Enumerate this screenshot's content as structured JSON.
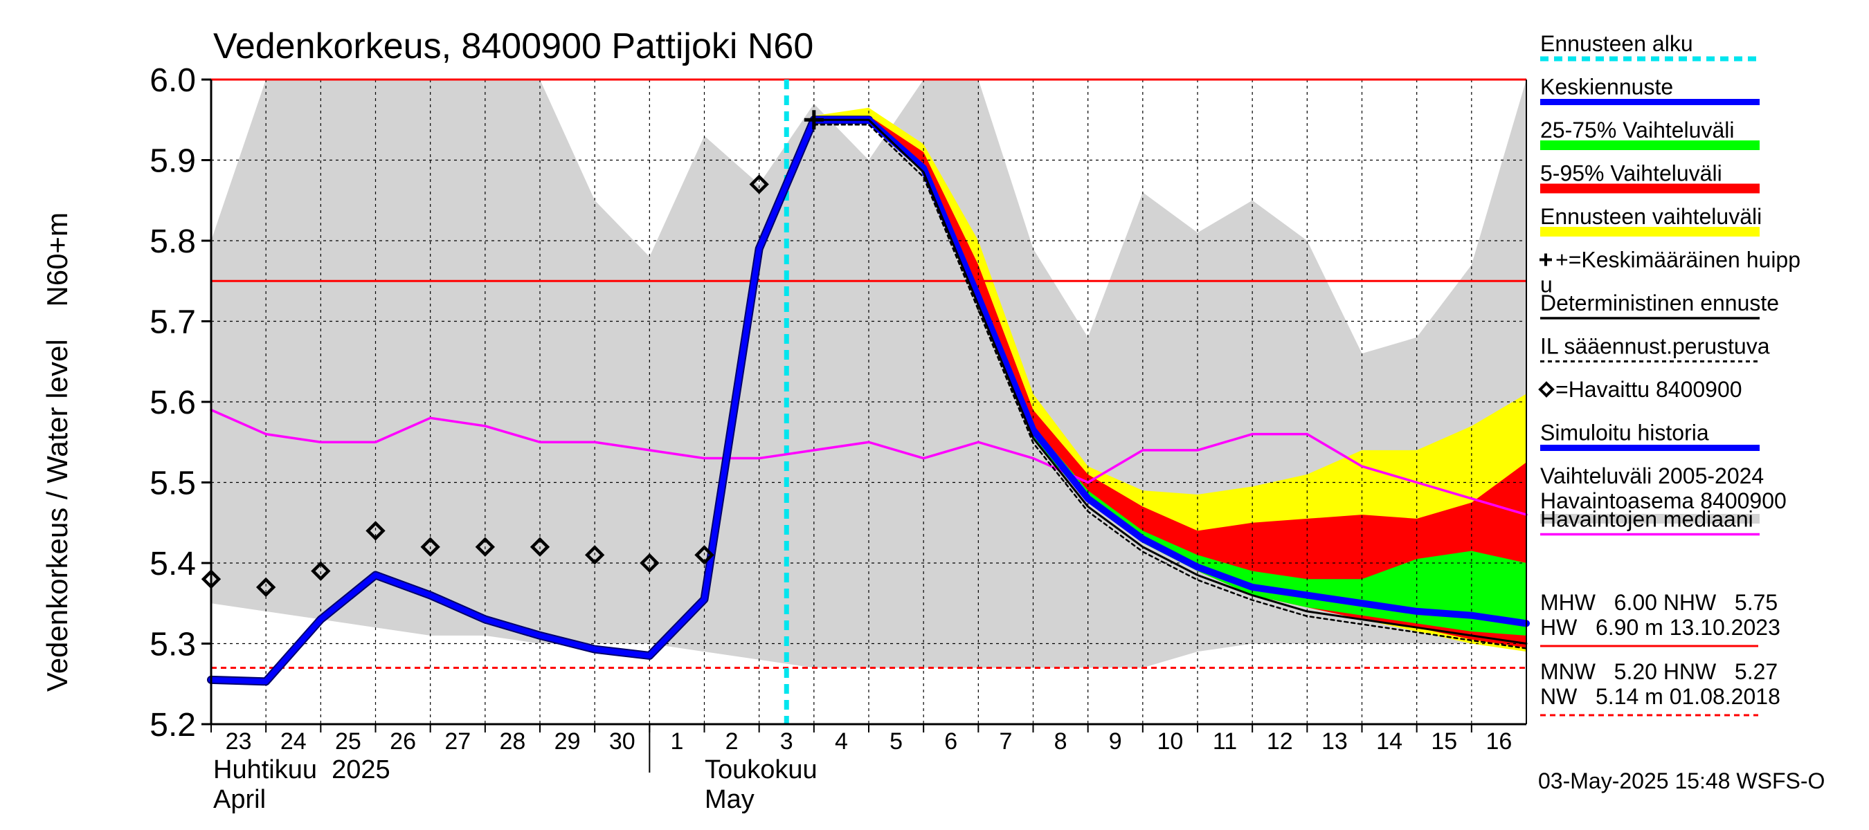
{
  "chart_data": {
    "type": "line",
    "title": "Vedenkorkeus, 8400900 Pattijoki N60",
    "ylabel": "Vedenkorkeus / Water level    N60+m",
    "ylim": [
      5.2,
      6.0
    ],
    "yticks": [
      "5.2",
      "5.3",
      "5.4",
      "5.5",
      "5.6",
      "5.7",
      "5.8",
      "5.9",
      "6.0"
    ],
    "x_range": [
      "2025-04-23",
      "2025-05-17"
    ],
    "x_tick_labels": [
      "23",
      "24",
      "25",
      "26",
      "27",
      "28",
      "29",
      "30",
      "1",
      "2",
      "3",
      "4",
      "5",
      "6",
      "7",
      "8",
      "9",
      "10",
      "11",
      "12",
      "13",
      "14",
      "15",
      "16"
    ],
    "month_labels": [
      {
        "fi": "Huhtikuu  2025",
        "en": "April"
      },
      {
        "fi": "Toukokuu",
        "en": "May"
      }
    ],
    "grid": true,
    "legend_placement": "right",
    "timestamp": "03-May-2025 15:48 WSFS-O",
    "forecast_start": "2025-05-03 12:00",
    "reference_lines": [
      {
        "name": "MHW",
        "value": 6.0,
        "style": "solid",
        "color": "#ff0000"
      },
      {
        "name": "NHW",
        "value": 5.75,
        "style": "solid",
        "color": "#ff0000"
      },
      {
        "name": "HNW",
        "value": 5.27,
        "style": "dashed",
        "color": "#ff0000"
      }
    ],
    "stats": {
      "line1": "MHW   6.00 NHW   5.75",
      "line2": "HW   6.90 m 13.10.2023",
      "line3": "MNW   5.20 HNW   5.27",
      "line4": "NW   5.14 m 01.08.2018"
    },
    "legend": [
      {
        "label": "Ennusteen alku",
        "color": "#00e5ee",
        "style": "dashed"
      },
      {
        "label": "Keskiennuste",
        "color": "#0000ff",
        "style": "thick"
      },
      {
        "label": "25-75% Vaihteluväli",
        "color": "#00ff00",
        "style": "band"
      },
      {
        "label": "5-95% Vaihteluväli",
        "color": "#ff0000",
        "style": "band"
      },
      {
        "label": "Ennusteen vaihteluväli",
        "color": "#ffff00",
        "style": "band"
      },
      {
        "label": "+=Keskimääräinen huipp",
        "label2": "u",
        "color": "#000000",
        "style": "marker"
      },
      {
        "label": "Deterministinen ennuste",
        "color": "#000000",
        "style": "line"
      },
      {
        "label": "IL sääennust.perustuva",
        "color": "#000000",
        "style": "dashed"
      },
      {
        "label": "=Havaittu 8400900",
        "color": "#000000",
        "style": "diamond"
      },
      {
        "label": "Simuloitu historia",
        "color": "#0000ff",
        "style": "thick"
      },
      {
        "label": "Vaihteluväli 2005-2024",
        "label2": " Havaintoasema 8400900",
        "color": "#d3d3d3",
        "style": "band"
      },
      {
        "label": "Havaintojen mediaani",
        "color": "#ff00ff",
        "style": "line"
      }
    ],
    "series": [
      {
        "name": "Vaihteluväli 2005-2024",
        "color": "#d3d3d3",
        "upper": [
          [
            0,
            5.8
          ],
          [
            1,
            6.0
          ],
          [
            2,
            6.0
          ],
          [
            3,
            6.0
          ],
          [
            4,
            6.0
          ],
          [
            5,
            6.0
          ],
          [
            6,
            6.0
          ],
          [
            7,
            5.85
          ],
          [
            8,
            5.78
          ],
          [
            9,
            5.93
          ],
          [
            10,
            5.87
          ],
          [
            11,
            5.97
          ],
          [
            12,
            5.9
          ],
          [
            13,
            6.0
          ],
          [
            14,
            6.0
          ],
          [
            15,
            5.79
          ],
          [
            16,
            5.68
          ],
          [
            17,
            5.86
          ],
          [
            18,
            5.81
          ],
          [
            19,
            5.85
          ],
          [
            20,
            5.8
          ],
          [
            21,
            5.66
          ],
          [
            22,
            5.68
          ],
          [
            23,
            5.77
          ],
          [
            24,
            6.0
          ]
        ],
        "lower": [
          [
            0,
            5.35
          ],
          [
            1,
            5.34
          ],
          [
            2,
            5.33
          ],
          [
            3,
            5.32
          ],
          [
            4,
            5.31
          ],
          [
            5,
            5.31
          ],
          [
            6,
            5.3
          ],
          [
            7,
            5.3
          ],
          [
            8,
            5.3
          ],
          [
            9,
            5.29
          ],
          [
            10,
            5.28
          ],
          [
            11,
            5.27
          ],
          [
            12,
            5.27
          ],
          [
            13,
            5.27
          ],
          [
            14,
            5.27
          ],
          [
            15,
            5.27
          ],
          [
            16,
            5.27
          ],
          [
            17,
            5.27
          ],
          [
            18,
            5.29
          ],
          [
            19,
            5.3
          ],
          [
            20,
            5.3
          ],
          [
            21,
            5.3
          ],
          [
            22,
            5.3
          ],
          [
            23,
            5.3
          ],
          [
            24,
            5.3
          ]
        ]
      },
      {
        "name": "Ennusteen vaihteluväli",
        "color": "#ffff00",
        "upper": [
          [
            11,
            5.955
          ],
          [
            12,
            5.965
          ],
          [
            13,
            5.92
          ],
          [
            14,
            5.8
          ],
          [
            15,
            5.61
          ],
          [
            16,
            5.52
          ],
          [
            17,
            5.49
          ],
          [
            18,
            5.485
          ],
          [
            19,
            5.495
          ],
          [
            20,
            5.51
          ],
          [
            21,
            5.54
          ],
          [
            22,
            5.54
          ],
          [
            23,
            5.57
          ],
          [
            24,
            5.61
          ]
        ],
        "lower": [
          [
            11,
            5.95
          ],
          [
            12,
            5.945
          ],
          [
            13,
            5.89
          ],
          [
            14,
            5.73
          ],
          [
            15,
            5.56
          ],
          [
            16,
            5.48
          ],
          [
            17,
            5.43
          ],
          [
            18,
            5.39
          ],
          [
            19,
            5.36
          ],
          [
            20,
            5.345
          ],
          [
            21,
            5.33
          ],
          [
            22,
            5.315
          ],
          [
            23,
            5.3
          ],
          [
            24,
            5.29
          ]
        ]
      },
      {
        "name": "5-95% Vaihteluväli",
        "color": "#ff0000",
        "upper": [
          [
            11,
            5.95
          ],
          [
            12,
            5.955
          ],
          [
            13,
            5.91
          ],
          [
            14,
            5.77
          ],
          [
            15,
            5.59
          ],
          [
            16,
            5.51
          ],
          [
            17,
            5.47
          ],
          [
            18,
            5.44
          ],
          [
            19,
            5.45
          ],
          [
            20,
            5.455
          ],
          [
            21,
            5.46
          ],
          [
            22,
            5.455
          ],
          [
            23,
            5.475
          ],
          [
            24,
            5.525
          ]
        ],
        "lower": [
          [
            11,
            5.95
          ],
          [
            12,
            5.945
          ],
          [
            13,
            5.89
          ],
          [
            14,
            5.73
          ],
          [
            15,
            5.56
          ],
          [
            16,
            5.48
          ],
          [
            17,
            5.43
          ],
          [
            18,
            5.39
          ],
          [
            19,
            5.36
          ],
          [
            20,
            5.345
          ],
          [
            21,
            5.33
          ],
          [
            22,
            5.32
          ],
          [
            23,
            5.305
          ],
          [
            24,
            5.295
          ]
        ]
      },
      {
        "name": "25-75% Vaihteluväli",
        "color": "#00ff00",
        "upper": [
          [
            11,
            5.95
          ],
          [
            12,
            5.95
          ],
          [
            13,
            5.89
          ],
          [
            14,
            5.73
          ],
          [
            15,
            5.57
          ],
          [
            16,
            5.49
          ],
          [
            17,
            5.44
          ],
          [
            18,
            5.41
          ],
          [
            19,
            5.39
          ],
          [
            20,
            5.38
          ],
          [
            21,
            5.38
          ],
          [
            22,
            5.405
          ],
          [
            23,
            5.415
          ],
          [
            24,
            5.4
          ]
        ],
        "lower": [
          [
            11,
            5.95
          ],
          [
            12,
            5.945
          ],
          [
            13,
            5.885
          ],
          [
            14,
            5.725
          ],
          [
            15,
            5.555
          ],
          [
            16,
            5.475
          ],
          [
            17,
            5.425
          ],
          [
            18,
            5.39
          ],
          [
            19,
            5.36
          ],
          [
            20,
            5.345
          ],
          [
            21,
            5.335
          ],
          [
            22,
            5.325
          ],
          [
            23,
            5.315
          ],
          [
            24,
            5.31
          ]
        ]
      },
      {
        "name": "Havaintojen mediaani",
        "color": "#ff00ff",
        "values": [
          [
            0,
            5.59
          ],
          [
            1,
            5.56
          ],
          [
            2,
            5.55
          ],
          [
            3,
            5.55
          ],
          [
            4,
            5.58
          ],
          [
            5,
            5.57
          ],
          [
            6,
            5.55
          ],
          [
            7,
            5.55
          ],
          [
            8,
            5.54
          ],
          [
            9,
            5.53
          ],
          [
            10,
            5.53
          ],
          [
            11,
            5.54
          ],
          [
            12,
            5.55
          ],
          [
            13,
            5.53
          ],
          [
            14,
            5.55
          ],
          [
            15,
            5.53
          ],
          [
            16,
            5.5
          ],
          [
            17,
            5.54
          ],
          [
            18,
            5.54
          ],
          [
            19,
            5.56
          ],
          [
            20,
            5.56
          ],
          [
            21,
            5.52
          ],
          [
            22,
            5.5
          ],
          [
            23,
            5.48
          ],
          [
            24,
            5.46
          ]
        ]
      },
      {
        "name": "Simuloitu historia",
        "color": "#0000ff",
        "values": [
          [
            0,
            5.255
          ],
          [
            1,
            5.253
          ],
          [
            2,
            5.33
          ],
          [
            3,
            5.385
          ],
          [
            4,
            5.36
          ],
          [
            5,
            5.33
          ],
          [
            6,
            5.31
          ],
          [
            7,
            5.293
          ],
          [
            8,
            5.285
          ],
          [
            9,
            5.355
          ],
          [
            10,
            5.79
          ],
          [
            11,
            5.95
          ],
          [
            12,
            5.95
          ]
        ]
      },
      {
        "name": "Keskiennuste",
        "color": "#0000ff",
        "values": [
          [
            11,
            5.95
          ],
          [
            12,
            5.95
          ],
          [
            13,
            5.89
          ],
          [
            14,
            5.73
          ],
          [
            15,
            5.565
          ],
          [
            16,
            5.48
          ],
          [
            17,
            5.43
          ],
          [
            18,
            5.395
          ],
          [
            19,
            5.37
          ],
          [
            20,
            5.36
          ],
          [
            21,
            5.35
          ],
          [
            22,
            5.34
          ],
          [
            23,
            5.335
          ],
          [
            24,
            5.325
          ]
        ]
      },
      {
        "name": "Deterministinen ennuste",
        "color": "#000000",
        "values": [
          [
            11,
            5.95
          ],
          [
            12,
            5.95
          ],
          [
            13,
            5.885
          ],
          [
            14,
            5.72
          ],
          [
            15,
            5.555
          ],
          [
            16,
            5.47
          ],
          [
            17,
            5.42
          ],
          [
            18,
            5.385
          ],
          [
            19,
            5.36
          ],
          [
            20,
            5.34
          ],
          [
            21,
            5.33
          ],
          [
            22,
            5.32
          ],
          [
            23,
            5.31
          ],
          [
            24,
            5.3
          ]
        ]
      },
      {
        "name": "Havaittu 8400900",
        "color": "#000000",
        "points": [
          [
            0,
            5.38
          ],
          [
            1,
            5.37
          ],
          [
            2,
            5.39
          ],
          [
            3,
            5.44
          ],
          [
            4,
            5.42
          ],
          [
            5,
            5.42
          ],
          [
            6,
            5.42
          ],
          [
            7,
            5.41
          ],
          [
            8,
            5.4
          ],
          [
            9,
            5.41
          ],
          [
            10,
            5.87
          ]
        ]
      },
      {
        "name": "Keskimääräinen huippu",
        "color": "#000000",
        "points": [
          [
            11,
            5.95
          ]
        ]
      }
    ]
  }
}
